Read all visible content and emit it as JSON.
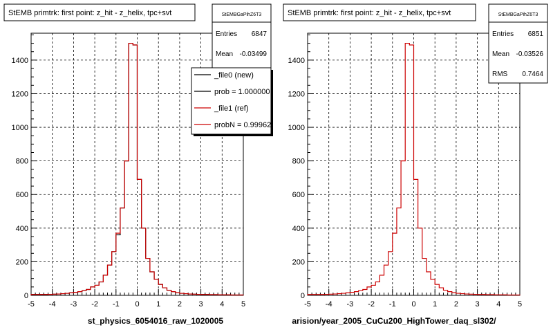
{
  "chart_data": [
    {
      "type": "histogram",
      "title": "StEMB primtrk: first point: z_hit - z_helix, tpc+svt",
      "xlabel": "st_physics_6054016_raw_1020005",
      "xlim": [
        -5,
        5
      ],
      "ylim": [
        0,
        1560
      ],
      "xticks": [
        "-5",
        "-4",
        "-3",
        "-2",
        "-1",
        "0",
        "1",
        "2",
        "3",
        "4",
        "5"
      ],
      "yticks": [
        "0",
        "200",
        "400",
        "600",
        "800",
        "1000",
        "1200",
        "1400"
      ],
      "grid": true,
      "bin_edges": [
        -5.0,
        -4.8,
        -4.6,
        -4.4,
        -4.2,
        -4.0,
        -3.8,
        -3.6,
        -3.4,
        -3.2,
        -3.0,
        -2.8,
        -2.6,
        -2.4,
        -2.2,
        -2.0,
        -1.8,
        -1.6,
        -1.4,
        -1.2,
        -1.0,
        -0.8,
        -0.6,
        -0.4,
        -0.2,
        0.0,
        0.2,
        0.4,
        0.6,
        0.8,
        1.0,
        1.2,
        1.4,
        1.6,
        1.8,
        2.0,
        2.2,
        2.4,
        2.6,
        2.8,
        3.0,
        3.2,
        3.4,
        3.6,
        3.8,
        4.0,
        4.2,
        4.4,
        4.6,
        4.8,
        5.0
      ],
      "series": [
        {
          "name": "_file0 (new)",
          "color": "#000000",
          "values": [
            5,
            5,
            5,
            5,
            6,
            7,
            8,
            10,
            12,
            15,
            18,
            22,
            28,
            35,
            50,
            60,
            80,
            120,
            180,
            260,
            360,
            520,
            800,
            1500,
            1490,
            690,
            400,
            220,
            140,
            95,
            65,
            45,
            30,
            22,
            16,
            12,
            10,
            8,
            7,
            6,
            5,
            5,
            4,
            4,
            3,
            3,
            3,
            2,
            2,
            2
          ]
        },
        {
          "name": "_file1 (ref)",
          "color": "#cc0000",
          "values": [
            5,
            5,
            5,
            5,
            6,
            7,
            8,
            10,
            12,
            15,
            18,
            22,
            28,
            35,
            50,
            60,
            80,
            120,
            180,
            260,
            370,
            520,
            800,
            1500,
            1490,
            690,
            400,
            220,
            140,
            95,
            65,
            45,
            30,
            22,
            16,
            12,
            10,
            8,
            7,
            6,
            5,
            5,
            4,
            4,
            3,
            3,
            3,
            2,
            2,
            2
          ]
        }
      ],
      "stats": {
        "title": "StEMBGaPihZ6T3",
        "entries_label": "Entries",
        "entries": "6847",
        "mean_label": "Mean",
        "mean": "-0.03499"
      },
      "legend": {
        "placement": "top-right",
        "entries": [
          {
            "label": "_file0 (new)",
            "color": "#000000"
          },
          {
            "label": "prob = 1.000000",
            "color": "#000000"
          },
          {
            "label": "_file1 (ref)",
            "color": "#cc0000"
          },
          {
            "label": "probN = 0.99962",
            "color": "#cc0000"
          }
        ]
      }
    },
    {
      "type": "histogram",
      "title": "StEMB primtrk: first point: z_hit - z_helix, tpc+svt",
      "xlabel": "arision/year_2005_CuCu200_HighTower_daq_sl302/",
      "xlim": [
        -5,
        5
      ],
      "ylim": [
        0,
        1560
      ],
      "xticks": [
        "-5",
        "-4",
        "-3",
        "-2",
        "-1",
        "0",
        "1",
        "2",
        "3",
        "4",
        "5"
      ],
      "yticks": [
        "0",
        "200",
        "400",
        "600",
        "800",
        "1000",
        "1200",
        "1400"
      ],
      "grid": true,
      "bin_edges": [
        -5.0,
        -4.8,
        -4.6,
        -4.4,
        -4.2,
        -4.0,
        -3.8,
        -3.6,
        -3.4,
        -3.2,
        -3.0,
        -2.8,
        -2.6,
        -2.4,
        -2.2,
        -2.0,
        -1.8,
        -1.6,
        -1.4,
        -1.2,
        -1.0,
        -0.8,
        -0.6,
        -0.4,
        -0.2,
        0.0,
        0.2,
        0.4,
        0.6,
        0.8,
        1.0,
        1.2,
        1.4,
        1.6,
        1.8,
        2.0,
        2.2,
        2.4,
        2.6,
        2.8,
        3.0,
        3.2,
        3.4,
        3.6,
        3.8,
        4.0,
        4.2,
        4.4,
        4.6,
        4.8,
        5.0
      ],
      "series": [
        {
          "color": "#cc0000",
          "values": [
            5,
            5,
            5,
            5,
            6,
            7,
            8,
            10,
            12,
            15,
            18,
            22,
            28,
            35,
            50,
            60,
            80,
            120,
            180,
            260,
            370,
            520,
            800,
            1500,
            1490,
            690,
            400,
            220,
            140,
            95,
            65,
            45,
            30,
            22,
            16,
            12,
            10,
            8,
            7,
            6,
            5,
            5,
            4,
            4,
            3,
            3,
            3,
            2,
            2,
            2
          ]
        }
      ],
      "stats": {
        "title": "StEMBGaPihZ6T3",
        "entries_label": "Entries",
        "entries": "6851",
        "mean_label": "Mean",
        "mean": "-0.03526",
        "rms_label": "RMS",
        "rms": "0.7464"
      }
    }
  ]
}
